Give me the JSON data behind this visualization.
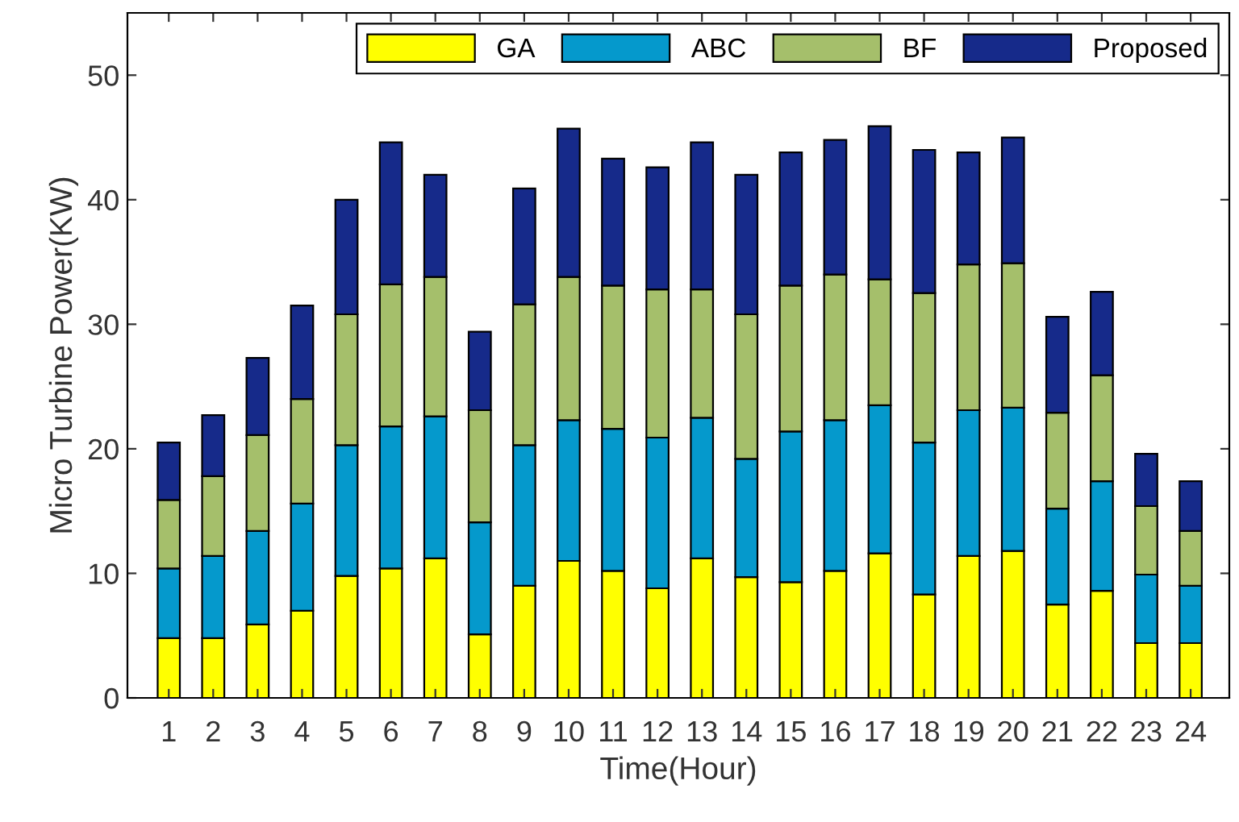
{
  "chart_data": {
    "type": "bar",
    "stacked": true,
    "xlabel": "Time(Hour)",
    "ylabel": "Micro Turbine Power(KW)",
    "categories": [
      "1",
      "2",
      "3",
      "4",
      "5",
      "6",
      "7",
      "8",
      "9",
      "10",
      "11",
      "12",
      "13",
      "14",
      "15",
      "16",
      "17",
      "18",
      "19",
      "20",
      "21",
      "22",
      "23",
      "24"
    ],
    "series": [
      {
        "name": "GA",
        "color": "#ffff00",
        "values": [
          4.8,
          4.8,
          5.9,
          7.0,
          9.8,
          10.4,
          11.2,
          5.1,
          9.0,
          11.0,
          10.2,
          8.8,
          11.2,
          9.7,
          9.3,
          10.2,
          11.6,
          8.3,
          11.4,
          11.8,
          7.5,
          8.6,
          4.4,
          4.4
        ]
      },
      {
        "name": "ABC",
        "color": "#0599cc",
        "values": [
          5.6,
          6.6,
          7.5,
          8.6,
          10.5,
          11.4,
          11.4,
          9.0,
          11.3,
          11.3,
          11.4,
          12.1,
          11.3,
          9.5,
          12.1,
          12.1,
          11.9,
          12.2,
          11.7,
          11.5,
          7.7,
          8.8,
          5.5,
          4.6
        ]
      },
      {
        "name": "BF",
        "color": "#a5bf6b",
        "values": [
          5.5,
          6.4,
          7.7,
          8.4,
          10.5,
          11.4,
          11.2,
          9.0,
          11.3,
          11.5,
          11.5,
          11.9,
          10.3,
          11.6,
          11.7,
          11.7,
          10.1,
          12.0,
          11.7,
          11.6,
          7.7,
          8.5,
          5.5,
          4.4
        ]
      },
      {
        "name": "Proposed",
        "color": "#162a8a",
        "values": [
          4.6,
          4.9,
          6.2,
          7.5,
          9.2,
          11.4,
          8.2,
          6.3,
          9.3,
          11.9,
          10.2,
          9.8,
          11.8,
          11.2,
          10.7,
          10.8,
          12.3,
          11.5,
          9.0,
          10.1,
          7.7,
          6.7,
          4.2,
          4.0
        ]
      }
    ],
    "ylim": [
      0,
      55
    ],
    "yticks": [
      0,
      10,
      20,
      30,
      40,
      50
    ],
    "grid": false,
    "legend": "top right"
  }
}
